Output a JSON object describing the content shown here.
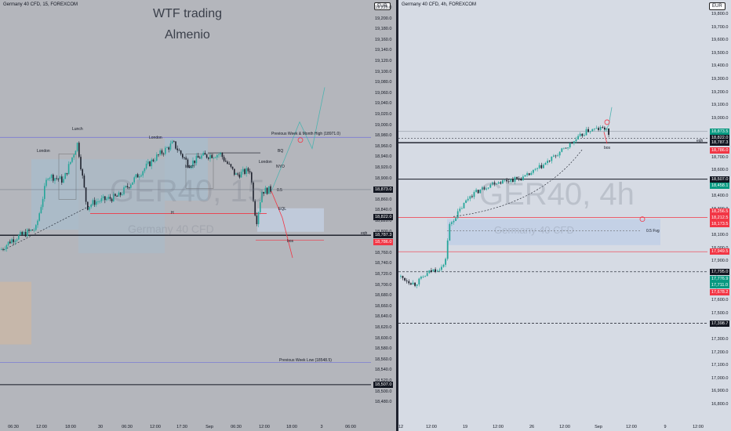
{
  "left_chart": {
    "symbol": "Germany 40 CFD, 15, FOREXCOM",
    "currency": "EUR",
    "title_line1": "WTF trading",
    "title_line2": "Almenio",
    "watermark_symbol": "GER40, 15",
    "watermark_name": "Germany 40 CFD",
    "y_ticks": [
      "19,220.0",
      "19,200.0",
      "19,180.0",
      "19,160.0",
      "19,140.0",
      "19,120.0",
      "19,100.0",
      "19,080.0",
      "19,060.0",
      "19,040.0",
      "19,020.0",
      "19,000.0",
      "18,980.0",
      "18,960.0",
      "18,940.0",
      "18,920.0",
      "18,900.0",
      "18,880.0",
      "18,860.0",
      "18,840.0",
      "18,820.0",
      "18,800.0",
      "18,780.0",
      "18,760.0",
      "18,740.0",
      "18,720.0",
      "18,700.0",
      "18,680.0",
      "18,660.0",
      "18,640.0",
      "18,620.0",
      "18,600.0",
      "18,580.0",
      "18,560.0",
      "18,540.0",
      "18,520.0",
      "18,500.0",
      "18,480.0"
    ],
    "x_ticks": [
      "06:30",
      "12:00",
      "18:00",
      "30",
      "06:30",
      "12:00",
      "17:30",
      "Sep",
      "06:30",
      "12:00",
      "18:00",
      "3",
      "06:00"
    ],
    "price_badges": {
      "p1": "18,873.0",
      "p2": "18,822.0",
      "p3": "18,787.3",
      "p4": "18,786.0",
      "p5": "18,507.0"
    },
    "annotations": {
      "lunch": "Lunch",
      "london1": "London",
      "london2": "London",
      "lunch2": "lunch",
      "london3": "London",
      "pwh": "Previous Week & Month High (18971.0)",
      "bq": "BQ",
      "nyo": "NYO",
      "half": "0.5",
      "eql": "EQL",
      "bos": "bos",
      "h": "H",
      "eqh": "eqh",
      "pwl": "Previous Week Low (18548.5)"
    }
  },
  "right_chart": {
    "symbol": "Germany 40 CFD, 4h, FOREXCOM",
    "currency": "EUR",
    "watermark_symbol": "GER40, 4h",
    "watermark_name": "Germany 40 CFD",
    "y_ticks": [
      "19,800.0",
      "19,700.0",
      "19,600.0",
      "19,500.0",
      "19,400.0",
      "19,300.0",
      "19,200.0",
      "19,100.0",
      "19,000.0",
      "18,900.0",
      "18,800.0",
      "18,700.0",
      "18,600.0",
      "18,500.0",
      "18,400.0",
      "18,300.0",
      "18,200.0",
      "18,100.0",
      "18,000.0",
      "17,900.0",
      "17,800.0",
      "17,700.0",
      "17,600.0",
      "17,500.0",
      "17,400.0",
      "17,300.0",
      "17,200.0",
      "17,100.0",
      "17,000.0",
      "16,900.0",
      "16,800.0"
    ],
    "x_ticks": [
      "12",
      "12:00",
      "19",
      "12:00",
      "26",
      "12:00",
      "Sep",
      "12:00",
      "9",
      "12:00"
    ],
    "price_badges": {
      "p1": "18,873.5",
      "p2": "18,822.0",
      "p3": "18,787.3",
      "p4": "18,786.0",
      "p5": "18,507.0",
      "p6": "18,458.1",
      "p7": "18,256.5",
      "p8": "18,212.5",
      "p9": "18,173.5",
      "p10": "17,949.5",
      "p11": "17,795.0",
      "p12": "17,776.9",
      "p13": "17,711.0",
      "p14": "17,678.2",
      "p15": "17,398.7"
    },
    "annotations": {
      "fvg": "0.5 Fvg",
      "eqh": "eqh",
      "bos": "bos"
    }
  },
  "colors": {
    "up": "#26a69a",
    "down": "#131722",
    "red": "#f23645",
    "green": "#089981",
    "blue_line": "#7b7bd4",
    "teal_arrow": "#4fb3b0"
  }
}
